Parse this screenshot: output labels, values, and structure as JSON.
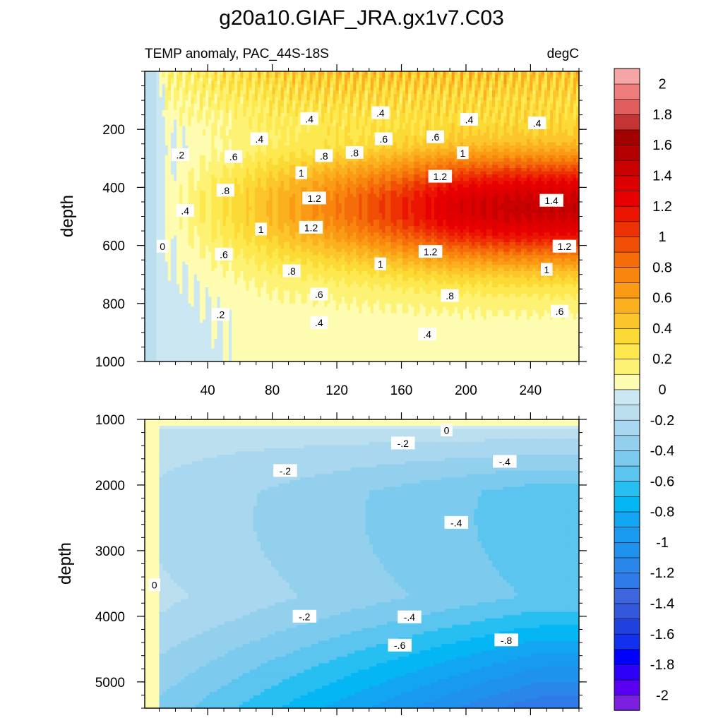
{
  "chart_data": {
    "type": "heatmap",
    "title": "g20a10.GIAF_JRA.gx1v7.C03",
    "subtitle_left": "TEMP anomaly, PAC_44S-18S",
    "subtitle_right": "degC",
    "x_range": [
      1,
      270
    ],
    "colorbar": {
      "levels": [
        -2.1,
        -2.0,
        -1.9,
        -1.8,
        -1.7,
        -1.6,
        -1.5,
        -1.4,
        -1.3,
        -1.2,
        -1.1,
        -1.0,
        -0.9,
        -0.8,
        -0.7,
        -0.6,
        -0.5,
        -0.4,
        -0.3,
        -0.2,
        -0.1,
        0.0,
        0.1,
        0.2,
        0.3,
        0.4,
        0.5,
        0.6,
        0.7,
        0.8,
        0.9,
        1.0,
        1.1,
        1.2,
        1.3,
        1.4,
        1.5,
        1.6,
        1.7,
        1.8,
        1.9,
        2.0,
        2.1
      ],
      "colors": [
        "#7a1fe0",
        "#5a00f2",
        "#2d00f7",
        "#0000ff",
        "#1230ee",
        "#2140e0",
        "#3358dc",
        "#3f66dc",
        "#2f7be8",
        "#2b86ea",
        "#1f92ee",
        "#189af0",
        "#12a6f2",
        "#04b7f4",
        "#27bff1",
        "#5bc5ef",
        "#7ccbee",
        "#93d0ee",
        "#a8d7ef",
        "#bcdff0",
        "#cbe7f2",
        "#fdfcb0",
        "#fdf274",
        "#fde94f",
        "#fcda36",
        "#fcc52b",
        "#fbb020",
        "#fb9b15",
        "#f8850e",
        "#f56c0a",
        "#f14f06",
        "#ee3102",
        "#ec1501",
        "#e80000",
        "#dd0000",
        "#c80000",
        "#b40000",
        "#a30000",
        "#c53434",
        "#e25d5d",
        "#ef7d7d",
        "#f5a5a5"
      ],
      "tick_values": [
        2,
        1.8,
        1.6,
        1.4,
        1.2,
        1,
        0.8,
        0.6,
        0.4,
        0.2,
        0,
        -0.2,
        -0.4,
        -0.6,
        -0.8,
        -1,
        -1.2,
        -1.4,
        -1.6,
        -1.8,
        -2
      ],
      "tick_labels": [
        "2",
        "1.8",
        "1.6",
        "1.4",
        "1.2",
        "1",
        "0.8",
        "0.6",
        "0.4",
        "0.2",
        "0",
        "-0.2",
        "-0.4",
        "-0.6",
        "-0.8",
        "-1",
        "-1.2",
        "-1.4",
        "-1.6",
        "-1.8",
        "-2"
      ]
    },
    "panels": [
      {
        "name": "upper",
        "ylabel": "depth",
        "ylim": [
          0,
          1000
        ],
        "y_reversed": true,
        "y_ticks": [
          200,
          400,
          600,
          800,
          1000
        ],
        "y_tick_labels": [
          "200",
          "400",
          "600",
          "800",
          "1000"
        ],
        "x_ticks": [
          40,
          80,
          120,
          160,
          200,
          240
        ],
        "x_tick_labels": [
          "40",
          "80",
          "120",
          "160",
          "200",
          "240"
        ],
        "contour_labels": [
          {
            "text": ".4",
            "x": 103,
            "y": 165
          },
          {
            "text": ".4",
            "x": 147,
            "y": 145
          },
          {
            "text": ".4",
            "x": 202,
            "y": 168
          },
          {
            "text": ".4",
            "x": 244,
            "y": 180
          },
          {
            "text": ".4",
            "x": 72,
            "y": 235
          },
          {
            "text": ".2",
            "x": 23,
            "y": 290
          },
          {
            "text": ".6",
            "x": 56,
            "y": 296
          },
          {
            "text": ".8",
            "x": 112,
            "y": 293
          },
          {
            "text": ".8",
            "x": 131,
            "y": 282
          },
          {
            "text": ".6",
            "x": 149,
            "y": 235
          },
          {
            "text": ".6",
            "x": 181,
            "y": 228
          },
          {
            "text": "1",
            "x": 198,
            "y": 283
          },
          {
            "text": "1",
            "x": 98,
            "y": 352
          },
          {
            "text": "1.2",
            "x": 184,
            "y": 364
          },
          {
            "text": ".8",
            "x": 51,
            "y": 412
          },
          {
            "text": "1.2",
            "x": 106,
            "y": 439
          },
          {
            "text": "1.4",
            "x": 253,
            "y": 447
          },
          {
            "text": ".4",
            "x": 26,
            "y": 482
          },
          {
            "text": "1",
            "x": 73,
            "y": 546
          },
          {
            "text": "1.2",
            "x": 104,
            "y": 540
          },
          {
            "text": "0",
            "x": 12,
            "y": 605
          },
          {
            "text": "1.2",
            "x": 261,
            "y": 605
          },
          {
            "text": "1.2",
            "x": 178,
            "y": 623
          },
          {
            "text": ".6",
            "x": 50,
            "y": 632
          },
          {
            "text": "1",
            "x": 147,
            "y": 666
          },
          {
            "text": "1",
            "x": 250,
            "y": 685
          },
          {
            "text": ".8",
            "x": 92,
            "y": 690
          },
          {
            "text": ".8",
            "x": 190,
            "y": 775
          },
          {
            "text": ".6",
            "x": 109,
            "y": 770
          },
          {
            "text": ".6",
            "x": 258,
            "y": 829
          },
          {
            "text": ".2",
            "x": 48,
            "y": 840
          },
          {
            "text": ".4",
            "x": 109,
            "y": 868
          },
          {
            "text": ".4",
            "x": 176,
            "y": 908
          }
        ]
      },
      {
        "name": "lower",
        "ylabel": "depth",
        "ylim": [
          1000,
          5400
        ],
        "y_reversed": true,
        "y_ticks": [
          1000,
          2000,
          3000,
          4000,
          5000
        ],
        "y_tick_labels": [
          "1000",
          "2000",
          "3000",
          "4000",
          "5000"
        ],
        "x_ticks": [
          40,
          80,
          120,
          160,
          200,
          240
        ],
        "x_tick_labels": [],
        "contour_labels": [
          {
            "text": "0",
            "x": 188,
            "y": 1170
          },
          {
            "text": "-.2",
            "x": 161,
            "y": 1370
          },
          {
            "text": "-.2",
            "x": 88,
            "y": 1790
          },
          {
            "text": "-.4",
            "x": 224,
            "y": 1650
          },
          {
            "text": "-.4",
            "x": 194,
            "y": 2580
          },
          {
            "text": "0",
            "x": 7,
            "y": 3530
          },
          {
            "text": "-.2",
            "x": 100,
            "y": 4010
          },
          {
            "text": "-.4",
            "x": 165,
            "y": 4020
          },
          {
            "text": "-.6",
            "x": 159,
            "y": 4450
          },
          {
            "text": "-.8",
            "x": 225,
            "y": 4370
          }
        ]
      }
    ]
  }
}
